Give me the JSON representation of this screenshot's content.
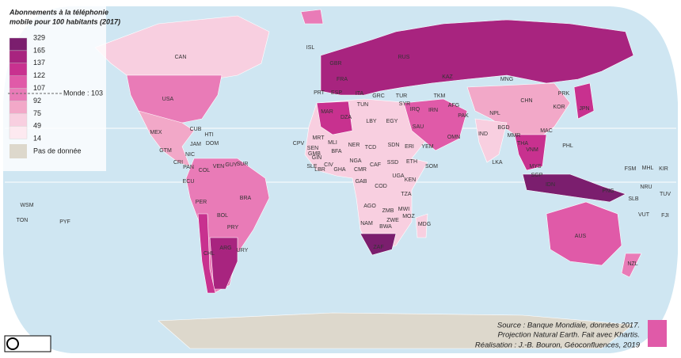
{
  "title": [
    "Abonnements à la téléphonie",
    "mobile pour 100 habitants (2017)"
  ],
  "legend": {
    "thresholds": [
      329,
      165,
      137,
      122,
      107,
      92,
      75,
      49,
      14
    ],
    "colors": [
      "#7b1e6e",
      "#a8247f",
      "#c8318f",
      "#e05aa8",
      "#e97bb7",
      "#f2a8c8",
      "#f8cfe0",
      "#fde9f0"
    ],
    "world": "Monde : 103",
    "no_data": "Pas de donnée"
  },
  "countries": [
    "ISL",
    "RUS",
    "GBR",
    "CAN",
    "MNG",
    "KAZ",
    "FRA",
    "ITA",
    "ESP",
    "PRT",
    "TUN",
    "GRC",
    "TUR",
    "USA",
    "MEX",
    "CUB",
    "HTI",
    "JAM",
    "DOM",
    "GTM",
    "NIC",
    "CRI",
    "PAN",
    "VEN",
    "GUY",
    "SUR",
    "COL",
    "ECU",
    "PER",
    "BRA",
    "BOL",
    "PRY",
    "CHL",
    "ARG",
    "URY",
    "MAR",
    "DZA",
    "LBY",
    "EGY",
    "MRT",
    "MLI",
    "NER",
    "TCD",
    "SDN",
    "ERI",
    "YEM",
    "SEN",
    "GMB",
    "BFA",
    "GIN",
    "SLE",
    "LBR",
    "CIV",
    "GHA",
    "NGA",
    "CAF",
    "SSD",
    "ETH",
    "SOM",
    "CMR",
    "UGA",
    "KEN",
    "GAB",
    "COD",
    "TZA",
    "AGO",
    "ZMB",
    "MWI",
    "MOZ",
    "ZWE",
    "MDG",
    "NAM",
    "BWA",
    "ZAF",
    "CPV",
    "SAU",
    "IRQ",
    "SYR",
    "IRN",
    "AFG",
    "PAK",
    "TKM",
    "IND",
    "NPL",
    "BGD",
    "MMR",
    "THA",
    "VNM",
    "LKA",
    "CHN",
    "PRK",
    "KOR",
    "JPN",
    "MAC",
    "PHL",
    "MYS",
    "SGP",
    "IDN",
    "PNG",
    "AUS",
    "NZL",
    "OMN",
    "FSM",
    "MHL",
    "KIR",
    "NRU",
    "TUV",
    "SLB",
    "VUT",
    "FJI",
    "WSM",
    "TON",
    "PYF"
  ],
  "source": [
    "Source : Banque Mondiale, données 2017.",
    "Projection Natural Earth. Fait avec Khartis.",
    "Réalisation : J.-B. Bouron, Géoconfluences, 2019"
  ]
}
